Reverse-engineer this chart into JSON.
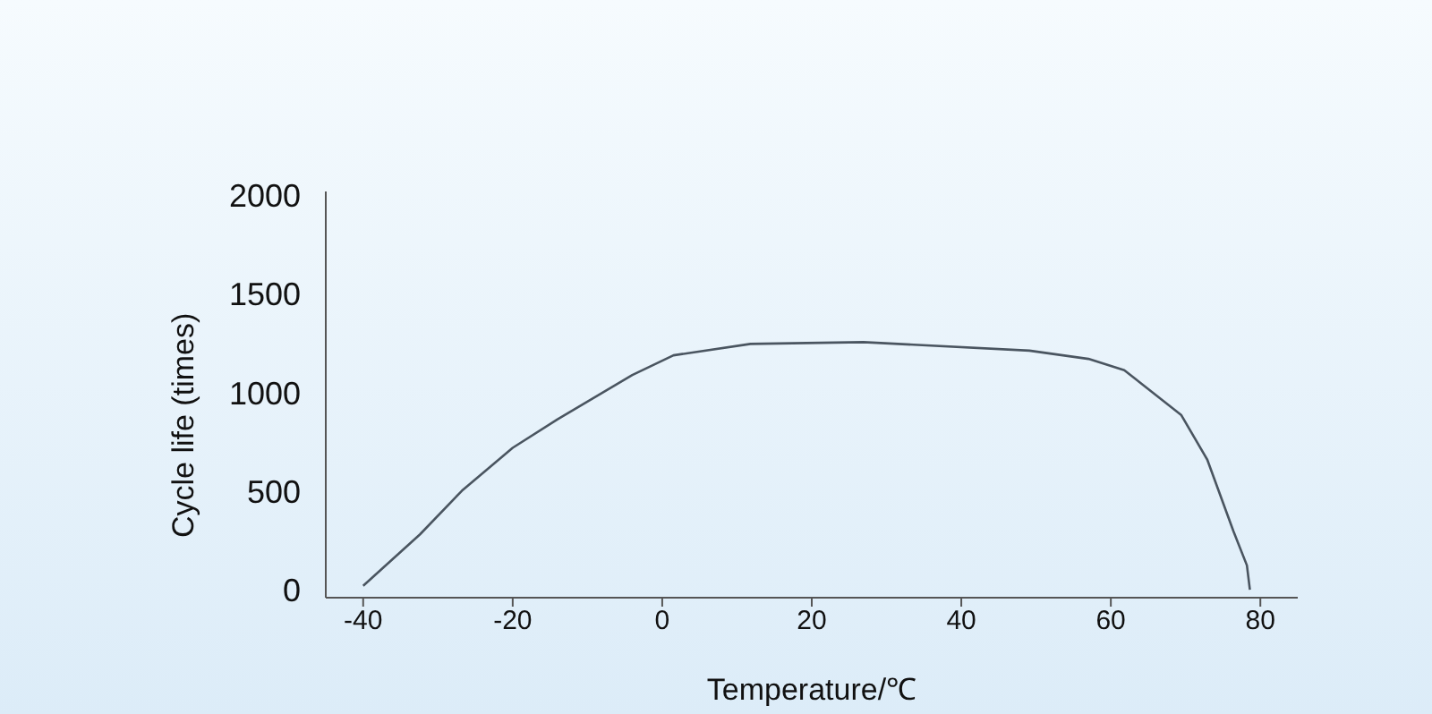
{
  "chart_data": {
    "type": "line",
    "xlabel": "Temperature/℃",
    "ylabel": "Cycle life (times)",
    "x": [
      -40,
      -32.4,
      -26.8,
      -20,
      -14,
      -4,
      1.5,
      11.8,
      26.9,
      49.1,
      57,
      61.8,
      69.4,
      72.9,
      76.4,
      78.2,
      78.6
    ],
    "series": [
      {
        "color": "#4a5560",
        "values": [
          20,
          281,
          502,
          720,
          865,
          1089,
          1189,
          1247,
          1256,
          1213,
          1171,
          1114,
          887,
          660,
          297,
          124,
          0
        ]
      }
    ],
    "xlim": [
      -45,
      85
    ],
    "xticks": [
      -40,
      -20,
      0,
      20,
      40,
      60,
      80
    ],
    "ylim": [
      -40,
      2020
    ],
    "yticks": [
      0,
      500,
      1000,
      1500,
      2000
    ],
    "grid": false,
    "legend": false,
    "marker": "none",
    "line_style": "solid"
  }
}
